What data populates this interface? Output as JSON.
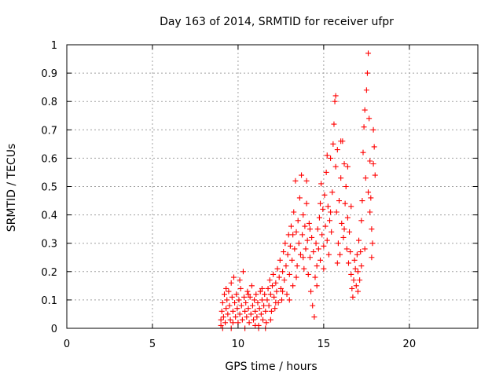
{
  "chart_data": {
    "type": "scatter",
    "title": "Day 163 of 2014, SRMTID for receiver ufpr",
    "xlabel": "GPS time / hours",
    "ylabel": "SRMTID / TECUs",
    "xlim": [
      0,
      24
    ],
    "ylim": [
      0,
      1
    ],
    "xticks": [
      0,
      5,
      10,
      15,
      20
    ],
    "yticks": [
      0,
      0.1,
      0.2,
      0.3,
      0.4,
      0.5,
      0.6,
      0.7,
      0.8,
      0.9,
      1
    ],
    "xtick_labels": [
      "0",
      "5",
      "10",
      "15",
      "20"
    ],
    "ytick_labels": [
      "0",
      "0.1",
      "0.2",
      "0.3",
      "0.4",
      "0.5",
      "0.6",
      "0.7",
      "0.8",
      "0.9",
      "1"
    ],
    "grid": true,
    "marker": "+",
    "colors": {
      "series": "#ff0000",
      "axes": "#000000",
      "grid": "#a0a0a0"
    },
    "series": [
      {
        "name": "SRMTID",
        "points": [
          [
            9.0,
            0.01
          ],
          [
            9.0,
            0.03
          ],
          [
            9.05,
            0.06
          ],
          [
            9.1,
            0.09
          ],
          [
            9.15,
            0.04
          ],
          [
            9.2,
            0.12
          ],
          [
            9.25,
            0.02
          ],
          [
            9.3,
            0.07
          ],
          [
            9.35,
            0.1
          ],
          [
            9.4,
            0.05
          ],
          [
            9.45,
            0.13
          ],
          [
            9.5,
            0.08
          ],
          [
            9.55,
            0.03
          ],
          [
            9.6,
            0.16
          ],
          [
            9.65,
            0.11
          ],
          [
            9.7,
            0.06
          ],
          [
            9.75,
            0.18
          ],
          [
            9.8,
            0.09
          ],
          [
            9.85,
            0.04
          ],
          [
            9.9,
            0.12
          ],
          [
            9.95,
            0.07
          ],
          [
            10.0,
            0.02
          ],
          [
            10.05,
            0.1
          ],
          [
            10.1,
            0.05
          ],
          [
            10.15,
            0.14
          ],
          [
            10.2,
            0.08
          ],
          [
            10.25,
            0.03
          ],
          [
            10.3,
            0.2
          ],
          [
            10.35,
            0.11
          ],
          [
            10.4,
            0.06
          ],
          [
            10.45,
            0.09
          ],
          [
            10.5,
            0.04
          ],
          [
            10.55,
            0.13
          ],
          [
            10.6,
            0.07
          ],
          [
            10.65,
            0.02
          ],
          [
            10.7,
            0.11
          ],
          [
            10.75,
            0.05
          ],
          [
            10.8,
            0.15
          ],
          [
            10.85,
            0.08
          ],
          [
            10.9,
            0.03
          ],
          [
            10.95,
            0.1
          ],
          [
            11.0,
            0.06
          ],
          [
            11.05,
            0.12
          ],
          [
            11.1,
            0.04
          ],
          [
            11.15,
            0.09
          ],
          [
            11.2,
            0.01
          ],
          [
            11.25,
            0.07
          ],
          [
            11.3,
            0.13
          ],
          [
            11.35,
            0.05
          ],
          [
            11.4,
            0.1
          ],
          [
            11.45,
            0.03
          ],
          [
            11.5,
            0.08
          ],
          [
            11.55,
            0.12
          ],
          [
            11.6,
            0.06
          ],
          [
            11.65,
            0.02
          ],
          [
            9.1,
            0.0
          ],
          [
            9.6,
            0.0
          ],
          [
            10.4,
            0.0
          ],
          [
            11.2,
            0.0
          ],
          [
            11.6,
            0.0
          ],
          [
            11.7,
            0.1
          ],
          [
            11.75,
            0.14
          ],
          [
            11.8,
            0.08
          ],
          [
            11.85,
            0.17
          ],
          [
            11.9,
            0.12
          ],
          [
            11.95,
            0.06
          ],
          [
            12.0,
            0.15
          ],
          [
            12.05,
            0.19
          ],
          [
            12.1,
            0.11
          ],
          [
            12.15,
            0.07
          ],
          [
            12.2,
            0.16
          ],
          [
            12.25,
            0.13
          ],
          [
            12.3,
            0.21
          ],
          [
            12.35,
            0.09
          ],
          [
            12.4,
            0.18
          ],
          [
            12.45,
            0.24
          ],
          [
            12.5,
            0.14
          ],
          [
            12.55,
            0.1
          ],
          [
            12.6,
            0.2
          ],
          [
            12.65,
            0.27
          ],
          [
            12.7,
            0.17
          ],
          [
            12.75,
            0.3
          ],
          [
            12.8,
            0.22
          ],
          [
            12.85,
            0.12
          ],
          [
            12.9,
            0.26
          ],
          [
            12.95,
            0.33
          ],
          [
            13.0,
            0.19
          ],
          [
            13.05,
            0.29
          ],
          [
            13.1,
            0.36
          ],
          [
            13.15,
            0.24
          ],
          [
            13.2,
            0.15
          ],
          [
            13.25,
            0.41
          ],
          [
            13.3,
            0.28
          ],
          [
            13.35,
            0.52
          ],
          [
            13.4,
            0.34
          ],
          [
            13.45,
            0.22
          ],
          [
            13.5,
            0.38
          ],
          [
            13.55,
            0.3
          ],
          [
            13.6,
            0.46
          ],
          [
            13.65,
            0.26
          ],
          [
            13.7,
            0.54
          ],
          [
            13.75,
            0.33
          ],
          [
            13.8,
            0.4
          ],
          [
            13.85,
            0.21
          ],
          [
            13.9,
            0.36
          ],
          [
            13.95,
            0.28
          ],
          [
            14.0,
            0.44
          ],
          [
            14.05,
            0.31
          ],
          [
            14.1,
            0.19
          ],
          [
            14.15,
            0.37
          ],
          [
            14.2,
            0.25
          ],
          [
            14.25,
            0.13
          ],
          [
            14.3,
            0.32
          ],
          [
            14.35,
            0.08
          ],
          [
            14.4,
            0.27
          ],
          [
            14.45,
            0.04
          ],
          [
            14.5,
            0.18
          ],
          [
            14.55,
            0.3
          ],
          [
            14.6,
            0.22
          ],
          [
            14.65,
            0.35
          ],
          [
            14.7,
            0.28
          ],
          [
            14.75,
            0.39
          ],
          [
            14.8,
            0.24
          ],
          [
            14.85,
            0.51
          ],
          [
            14.9,
            0.33
          ],
          [
            14.95,
            0.42
          ],
          [
            15.0,
            0.29
          ],
          [
            15.05,
            0.47
          ],
          [
            15.1,
            0.36
          ],
          [
            15.15,
            0.55
          ],
          [
            15.2,
            0.31
          ],
          [
            15.25,
            0.43
          ],
          [
            15.3,
            0.26
          ],
          [
            15.35,
            0.38
          ],
          [
            15.4,
            0.6
          ],
          [
            15.45,
            0.34
          ],
          [
            15.5,
            0.48
          ],
          [
            15.55,
            0.65
          ],
          [
            15.6,
            0.72
          ],
          [
            15.65,
            0.8
          ],
          [
            15.7,
            0.57
          ],
          [
            15.75,
            0.41
          ],
          [
            15.8,
            0.63
          ],
          [
            15.85,
            0.3
          ],
          [
            15.9,
            0.45
          ],
          [
            15.95,
            0.26
          ],
          [
            16.0,
            0.53
          ],
          [
            16.05,
            0.37
          ],
          [
            16.1,
            0.66
          ],
          [
            16.15,
            0.32
          ],
          [
            16.2,
            0.58
          ],
          [
            16.25,
            0.44
          ],
          [
            16.3,
            0.5
          ],
          [
            16.35,
            0.28
          ],
          [
            16.4,
            0.39
          ],
          [
            16.45,
            0.23
          ],
          [
            16.5,
            0.34
          ],
          [
            16.55,
            0.27
          ],
          [
            16.6,
            0.19
          ],
          [
            16.65,
            0.14
          ],
          [
            16.7,
            0.11
          ],
          [
            16.75,
            0.17
          ],
          [
            16.8,
            0.24
          ],
          [
            16.85,
            0.21
          ],
          [
            16.9,
            0.15
          ],
          [
            16.95,
            0.26
          ],
          [
            17.0,
            0.2
          ],
          [
            17.05,
            0.31
          ],
          [
            17.1,
            0.17
          ],
          [
            17.15,
            0.27
          ],
          [
            17.2,
            0.38
          ],
          [
            17.25,
            0.45
          ],
          [
            17.3,
            0.62
          ],
          [
            17.35,
            0.71
          ],
          [
            17.4,
            0.77
          ],
          [
            17.45,
            0.53
          ],
          [
            17.5,
            0.84
          ],
          [
            17.55,
            0.9
          ],
          [
            17.6,
            0.97
          ],
          [
            17.65,
            0.74
          ],
          [
            17.7,
            0.59
          ],
          [
            17.75,
            0.46
          ],
          [
            17.8,
            0.35
          ],
          [
            17.85,
            0.3
          ],
          [
            17.9,
            0.58
          ],
          [
            17.95,
            0.64
          ],
          [
            18.0,
            0.54
          ],
          [
            17.9,
            0.7
          ],
          [
            17.7,
            0.41
          ],
          [
            15.7,
            0.82
          ],
          [
            9.3,
            0.14
          ],
          [
            9.7,
            0.02
          ],
          [
            10.1,
            0.17
          ],
          [
            10.6,
            0.12
          ],
          [
            11.0,
            0.01
          ],
          [
            11.4,
            0.14
          ],
          [
            11.9,
            0.03
          ],
          [
            12.2,
            0.09
          ],
          [
            12.6,
            0.13
          ],
          [
            13.0,
            0.1
          ],
          [
            13.4,
            0.18
          ],
          [
            13.8,
            0.25
          ],
          [
            14.2,
            0.35
          ],
          [
            14.6,
            0.15
          ],
          [
            15.0,
            0.21
          ],
          [
            15.4,
            0.41
          ],
          [
            15.8,
            0.23
          ],
          [
            16.2,
            0.35
          ],
          [
            16.6,
            0.43
          ],
          [
            17.0,
            0.13
          ],
          [
            17.4,
            0.28
          ],
          [
            17.8,
            0.25
          ],
          [
            13.2,
            0.33
          ],
          [
            14.0,
            0.52
          ],
          [
            14.8,
            0.44
          ],
          [
            15.2,
            0.61
          ],
          [
            16.0,
            0.66
          ],
          [
            16.4,
            0.57
          ],
          [
            17.2,
            0.22
          ],
          [
            17.6,
            0.48
          ]
        ]
      }
    ]
  }
}
